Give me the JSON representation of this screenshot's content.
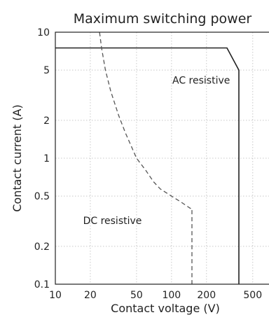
{
  "chart_data": {
    "type": "line",
    "title": "Maximum switching power",
    "xlabel": "Contact voltage (V)",
    "ylabel": "Contact current (A)",
    "xscale": "log",
    "yscale": "log",
    "xlim": [
      10,
      700
    ],
    "ylim": [
      0.1,
      10
    ],
    "xticks": [
      10,
      20,
      50,
      100,
      200,
      500
    ],
    "yticks": [
      0.1,
      0.2,
      0.5,
      1,
      2,
      5,
      10
    ],
    "xtick_labels": [
      "10",
      "20",
      "50",
      "100",
      "200",
      "500"
    ],
    "ytick_labels": [
      "0.1",
      "0.2",
      "0.5",
      "1",
      "2",
      "5",
      "10"
    ],
    "grid": true,
    "series": [
      {
        "name": "AC resistive",
        "line_style": "solid",
        "color": "#222222",
        "x": [
          10,
          300,
          380,
          380
        ],
        "y": [
          7.5,
          7.5,
          5,
          0.1
        ]
      },
      {
        "name": "DC resistive",
        "line_style": "dashed",
        "color": "#555555",
        "x": [
          24,
          25,
          27,
          30,
          35,
          40,
          50,
          60,
          70,
          80,
          100,
          120,
          145,
          150,
          150
        ],
        "y": [
          10,
          7.5,
          5,
          3.4,
          2.2,
          1.6,
          1.0,
          0.8,
          0.65,
          0.57,
          0.5,
          0.45,
          0.4,
          0.4,
          0.1
        ]
      }
    ],
    "annotations": [
      {
        "text": "AC resistive",
        "x": 180,
        "y": 3.9
      },
      {
        "text": "DC resistive",
        "x": 31,
        "y": 0.3
      }
    ]
  }
}
